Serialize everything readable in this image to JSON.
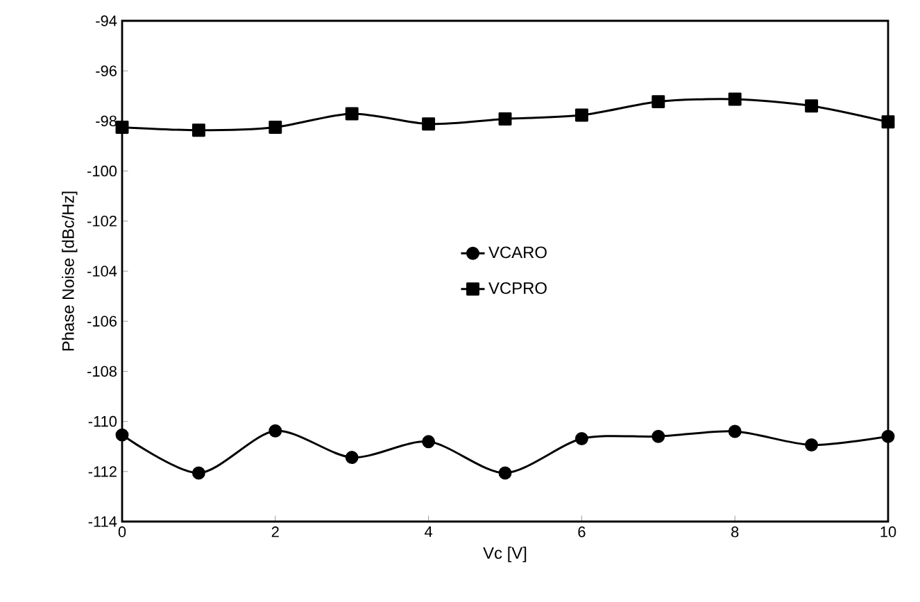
{
  "chart_data": {
    "type": "line",
    "xlabel": "Vc [V]",
    "ylabel": "Phase Noise [dBc/Hz]",
    "x": [
      0,
      1,
      2,
      3,
      4,
      5,
      6,
      7,
      8,
      9,
      10
    ],
    "series": [
      {
        "name": "VCARO",
        "color": "#000000",
        "marker": "circle",
        "values": [
          -110.54,
          -112.06,
          -110.38,
          -111.44,
          -110.81,
          -112.06,
          -110.69,
          -110.6,
          -110.4,
          -110.94,
          -110.6
        ]
      },
      {
        "name": "VCPRO",
        "color": "#000000",
        "marker": "square",
        "values": [
          -98.25,
          -98.37,
          -98.25,
          -97.71,
          -98.12,
          -97.92,
          -97.77,
          -97.23,
          -97.13,
          -97.4,
          -98.04
        ]
      }
    ],
    "xlim": [
      0,
      10
    ],
    "xticks": [
      0,
      2,
      4,
      6,
      8,
      10
    ],
    "ylim": [
      -114,
      -94
    ],
    "yticks": [
      -114,
      -112,
      -110,
      -108,
      -106,
      -104,
      -102,
      -100,
      -98,
      -96,
      -94
    ],
    "grid": false,
    "legend": "center",
    "line_style": "solid"
  }
}
